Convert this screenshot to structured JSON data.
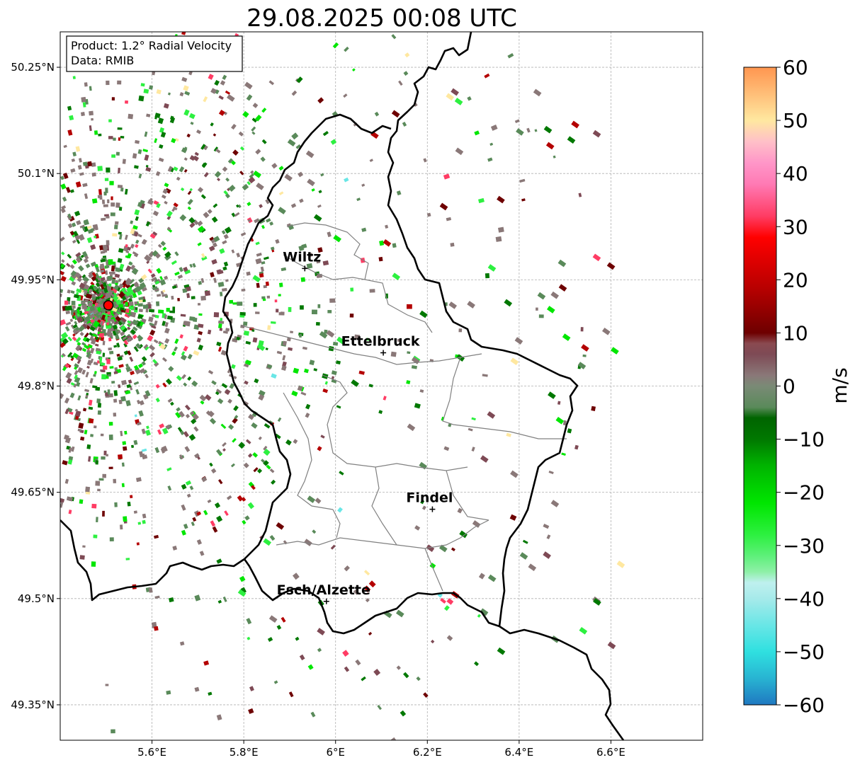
{
  "title": "29.08.2025 00:08 UTC",
  "info_box": {
    "product": "Product: 1.2° Radial Velocity",
    "data_source": "Data: RMIB"
  },
  "axes": {
    "lon_ticks": [
      {
        "value": 5.6,
        "label": "5.6°E"
      },
      {
        "value": 5.8,
        "label": "5.8°E"
      },
      {
        "value": 6.0,
        "label": "6°E"
      },
      {
        "value": 6.2,
        "label": "6.2°E"
      },
      {
        "value": 6.4,
        "label": "6.4°E"
      },
      {
        "value": 6.6,
        "label": "6.6°E"
      }
    ],
    "lat_ticks": [
      {
        "value": 50.25,
        "label": "50.25°N"
      },
      {
        "value": 50.1,
        "label": "50.1°N"
      },
      {
        "value": 49.95,
        "label": "49.95°N"
      },
      {
        "value": 49.8,
        "label": "49.8°N"
      },
      {
        "value": 49.65,
        "label": "49.65°N"
      },
      {
        "value": 49.5,
        "label": "49.5°N"
      },
      {
        "value": 49.35,
        "label": "49.35°N"
      }
    ],
    "lon_range": [
      5.4,
      6.8
    ],
    "lat_range": [
      49.3,
      50.3
    ],
    "grid": true
  },
  "cities": [
    {
      "name": "Wiltz",
      "lon": 5.933,
      "lat": 49.966
    },
    {
      "name": "Ettelbruck",
      "lon": 6.104,
      "lat": 49.847
    },
    {
      "name": "Findel",
      "lon": 6.211,
      "lat": 49.626
    },
    {
      "name": "Esch/Alzette",
      "lon": 5.98,
      "lat": 49.496
    }
  ],
  "radar_site": {
    "lon": 5.505,
    "lat": 49.914,
    "color": "#ff0000"
  },
  "colorbar": {
    "label": "m/s",
    "min": -60,
    "max": 60,
    "ticks": [
      {
        "value": 60,
        "label": "60"
      },
      {
        "value": 50,
        "label": "50"
      },
      {
        "value": 40,
        "label": "40"
      },
      {
        "value": 30,
        "label": "30"
      },
      {
        "value": 20,
        "label": "20"
      },
      {
        "value": 10,
        "label": "10"
      },
      {
        "value": 0,
        "label": "0"
      },
      {
        "value": -10,
        "label": "−10"
      },
      {
        "value": -20,
        "label": "−20"
      },
      {
        "value": -30,
        "label": "−30"
      },
      {
        "value": -40,
        "label": "−40"
      },
      {
        "value": -50,
        "label": "−50"
      },
      {
        "value": -60,
        "label": "−60"
      }
    ],
    "stops": [
      {
        "value": -60,
        "color": "#1f78c1"
      },
      {
        "value": -55,
        "color": "#28b4d2"
      },
      {
        "value": -50,
        "color": "#2fe0e0"
      },
      {
        "value": -45,
        "color": "#69e6e6"
      },
      {
        "value": -40,
        "color": "#a6eaea"
      },
      {
        "value": -37,
        "color": "#bff0ee"
      },
      {
        "value": -35,
        "color": "#8ff0a8"
      },
      {
        "value": -32,
        "color": "#5ef07a"
      },
      {
        "value": -28,
        "color": "#2df040"
      },
      {
        "value": -22,
        "color": "#00e600"
      },
      {
        "value": -15,
        "color": "#00b400"
      },
      {
        "value": -10,
        "color": "#007800"
      },
      {
        "value": -6,
        "color": "#006400"
      },
      {
        "value": -4,
        "color": "#5a8a5a"
      },
      {
        "value": 0,
        "color": "#7a8a76"
      },
      {
        "value": 2,
        "color": "#8a7878"
      },
      {
        "value": 6,
        "color": "#7e4a55"
      },
      {
        "value": 8,
        "color": "#8a4a50"
      },
      {
        "value": 10,
        "color": "#6e0000"
      },
      {
        "value": 18,
        "color": "#b40000"
      },
      {
        "value": 28,
        "color": "#ff0000"
      },
      {
        "value": 32,
        "color": "#ff3c64"
      },
      {
        "value": 38,
        "color": "#ff7ab4"
      },
      {
        "value": 42,
        "color": "#ff96c8"
      },
      {
        "value": 46,
        "color": "#ffc0c8"
      },
      {
        "value": 50,
        "color": "#ffe8a0"
      },
      {
        "value": 55,
        "color": "#ffbe78"
      },
      {
        "value": 60,
        "color": "#ff9650"
      }
    ]
  },
  "colors": {
    "background": "#ffffff",
    "border": "#000000",
    "canton_border": "#808080",
    "grid": "#b0b0b0"
  }
}
